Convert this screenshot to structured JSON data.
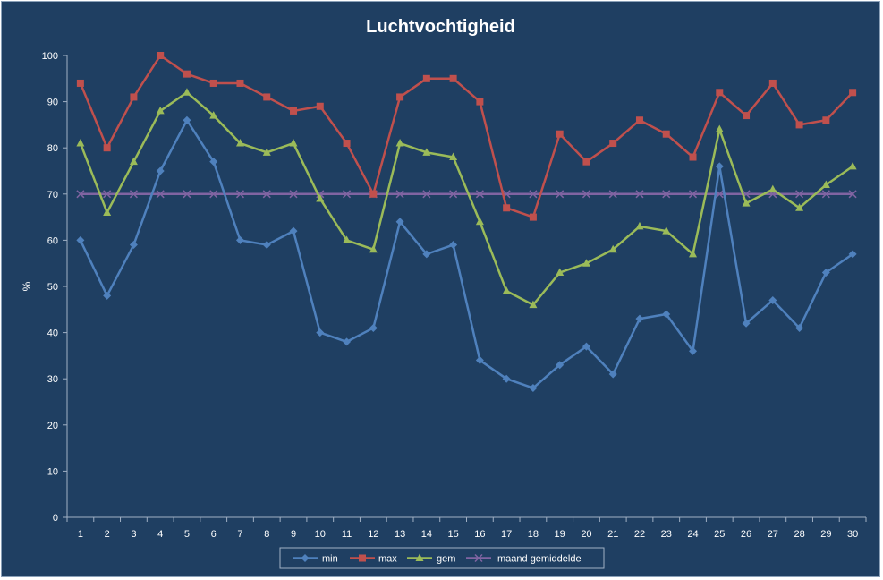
{
  "chart_data": {
    "type": "line",
    "title": "Luchtvochtigheid",
    "xlabel": "",
    "ylabel": "%",
    "ylim": [
      0,
      100
    ],
    "yticks": [
      0,
      10,
      20,
      30,
      40,
      50,
      60,
      70,
      80,
      90,
      100
    ],
    "x": [
      1,
      2,
      3,
      4,
      5,
      6,
      7,
      8,
      9,
      10,
      11,
      12,
      13,
      14,
      15,
      16,
      17,
      18,
      19,
      20,
      21,
      22,
      23,
      24,
      25,
      26,
      27,
      28,
      29,
      30
    ],
    "grid": false,
    "legend": "bottom",
    "series": [
      {
        "name": "min",
        "color": "#4f81bd",
        "marker": "diamond",
        "values": [
          60,
          48,
          59,
          75,
          86,
          77,
          60,
          59,
          62,
          40,
          38,
          41,
          64,
          57,
          59,
          34,
          30,
          28,
          33,
          37,
          31,
          43,
          44,
          36,
          76,
          42,
          47,
          41,
          53,
          57
        ]
      },
      {
        "name": "max",
        "color": "#c0504d",
        "marker": "square",
        "values": [
          94,
          80,
          91,
          100,
          96,
          94,
          94,
          91,
          88,
          89,
          81,
          70,
          91,
          95,
          95,
          90,
          67,
          65,
          83,
          77,
          81,
          86,
          83,
          78,
          92,
          87,
          94,
          85,
          86,
          92
        ]
      },
      {
        "name": "gem",
        "color": "#9bbb59",
        "marker": "triangle",
        "values": [
          81,
          66,
          77,
          88,
          92,
          87,
          81,
          79,
          81,
          69,
          60,
          58,
          81,
          79,
          78,
          64,
          49,
          46,
          53,
          55,
          58,
          63,
          62,
          57,
          84,
          68,
          71,
          67,
          72,
          76
        ]
      },
      {
        "name": "maand gemiddelde",
        "color": "#8064a2",
        "marker": "x",
        "values": [
          70,
          70,
          70,
          70,
          70,
          70,
          70,
          70,
          70,
          70,
          70,
          70,
          70,
          70,
          70,
          70,
          70,
          70,
          70,
          70,
          70,
          70,
          70,
          70,
          70,
          70,
          70,
          70,
          70,
          70
        ]
      }
    ]
  }
}
